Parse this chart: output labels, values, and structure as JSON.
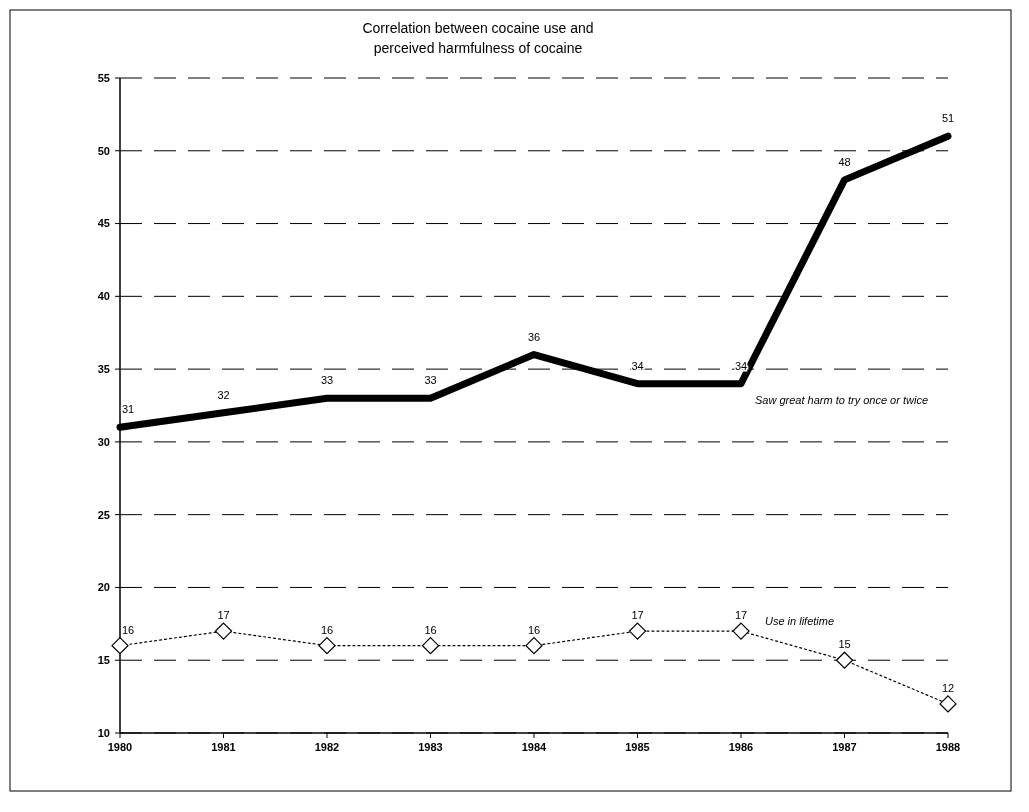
{
  "chart_data": {
    "type": "line",
    "title": "Correlation between cocaine use and\nperceived harmfulness of cocaine",
    "x": [
      1980,
      1981,
      1982,
      1983,
      1984,
      1985,
      1986,
      1987,
      1988
    ],
    "xlim": [
      1980,
      1988
    ],
    "xticks": [
      1980,
      1981,
      1982,
      1983,
      1984,
      1985,
      1986,
      1987,
      1988
    ],
    "ylim": [
      10,
      55
    ],
    "yticks": [
      10,
      15,
      20,
      25,
      30,
      35,
      40,
      45,
      50,
      55
    ],
    "grid": "y",
    "data_labels": true,
    "series": [
      {
        "name": "Saw great harm to try once or twice",
        "color": "#000000",
        "values": [
          31,
          32,
          33,
          33,
          36,
          34,
          34,
          48,
          51
        ],
        "marker": "none",
        "line_style": "solid"
      },
      {
        "name": "Use in lifetime",
        "color": "#000000",
        "values": [
          16,
          17,
          16,
          16,
          16,
          17,
          17,
          15,
          12
        ],
        "marker": "diamond",
        "line_style": "dotted"
      }
    ]
  }
}
